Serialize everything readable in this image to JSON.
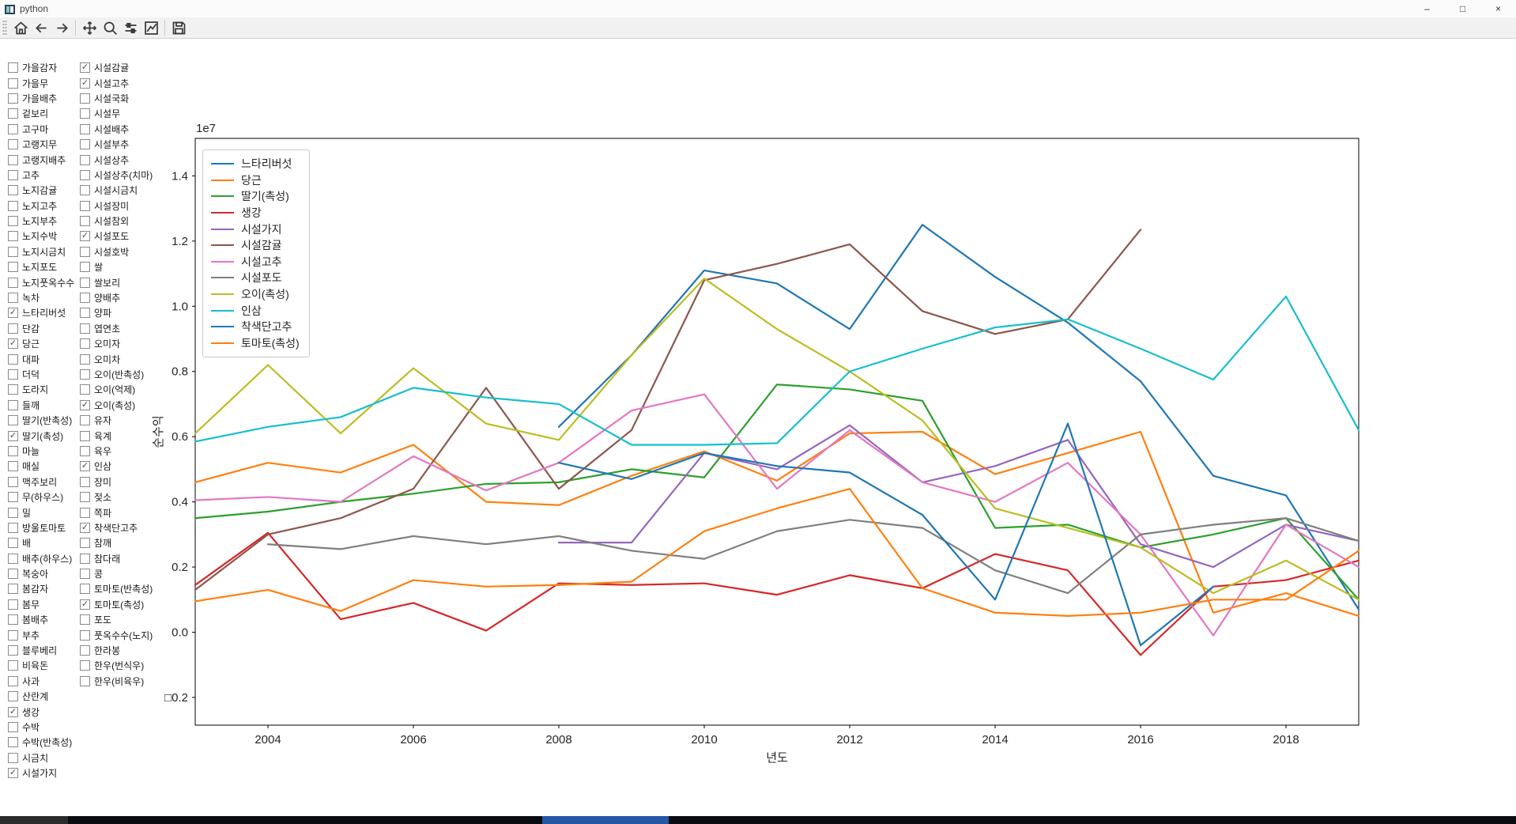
{
  "window": {
    "title": "python",
    "controls": {
      "minimize": "–",
      "maximize": "□",
      "close": "×"
    }
  },
  "toolbar": {
    "buttons": [
      "home",
      "back",
      "forward",
      "pan",
      "zoom",
      "subplots",
      "customize",
      "save"
    ]
  },
  "checkbox_panel": {
    "left": [
      {
        "label": "가을감자",
        "checked": false
      },
      {
        "label": "가을무",
        "checked": false
      },
      {
        "label": "가을배추",
        "checked": false
      },
      {
        "label": "겉보리",
        "checked": false
      },
      {
        "label": "고구마",
        "checked": false
      },
      {
        "label": "고랭지무",
        "checked": false
      },
      {
        "label": "고랭지배추",
        "checked": false
      },
      {
        "label": "고추",
        "checked": false
      },
      {
        "label": "노지감귤",
        "checked": false
      },
      {
        "label": "노지고추",
        "checked": false
      },
      {
        "label": "노지부추",
        "checked": false
      },
      {
        "label": "노지수박",
        "checked": false
      },
      {
        "label": "노지시금치",
        "checked": false
      },
      {
        "label": "노지포도",
        "checked": false
      },
      {
        "label": "노지풋옥수수",
        "checked": false
      },
      {
        "label": "녹차",
        "checked": false
      },
      {
        "label": "느타리버섯",
        "checked": true
      },
      {
        "label": "단감",
        "checked": false
      },
      {
        "label": "당근",
        "checked": true
      },
      {
        "label": "대파",
        "checked": false
      },
      {
        "label": "더덕",
        "checked": false
      },
      {
        "label": "도라지",
        "checked": false
      },
      {
        "label": "들깨",
        "checked": false
      },
      {
        "label": "딸기(반촉성)",
        "checked": false
      },
      {
        "label": "딸기(촉성)",
        "checked": true
      },
      {
        "label": "마늘",
        "checked": false
      },
      {
        "label": "매실",
        "checked": false
      },
      {
        "label": "맥주보리",
        "checked": false
      },
      {
        "label": "무(하우스)",
        "checked": false
      },
      {
        "label": "밀",
        "checked": false
      },
      {
        "label": "방울토마토",
        "checked": false
      },
      {
        "label": "배",
        "checked": false
      },
      {
        "label": "배추(하우스)",
        "checked": false
      },
      {
        "label": "복숭아",
        "checked": false
      },
      {
        "label": "봄감자",
        "checked": false
      },
      {
        "label": "봄무",
        "checked": false
      },
      {
        "label": "봄배추",
        "checked": false
      },
      {
        "label": "부추",
        "checked": false
      },
      {
        "label": "블루베리",
        "checked": false
      },
      {
        "label": "비육돈",
        "checked": false
      },
      {
        "label": "사과",
        "checked": false
      },
      {
        "label": "산란계",
        "checked": false
      },
      {
        "label": "생강",
        "checked": true
      },
      {
        "label": "수박",
        "checked": false
      },
      {
        "label": "수박(반촉성)",
        "checked": false
      },
      {
        "label": "시금치",
        "checked": false
      },
      {
        "label": "시설가지",
        "checked": true
      }
    ],
    "right": [
      {
        "label": "시설감귤",
        "checked": true
      },
      {
        "label": "시설고추",
        "checked": true
      },
      {
        "label": "시설국화",
        "checked": false
      },
      {
        "label": "시설무",
        "checked": false
      },
      {
        "label": "시설배추",
        "checked": false
      },
      {
        "label": "시설부추",
        "checked": false
      },
      {
        "label": "시설상추",
        "checked": false
      },
      {
        "label": "시설상추(치마)",
        "checked": false
      },
      {
        "label": "시설시금치",
        "checked": false
      },
      {
        "label": "시설장미",
        "checked": false
      },
      {
        "label": "시설참외",
        "checked": false
      },
      {
        "label": "시설포도",
        "checked": true
      },
      {
        "label": "시설호박",
        "checked": false
      },
      {
        "label": "쌀",
        "checked": false
      },
      {
        "label": "쌀보리",
        "checked": false
      },
      {
        "label": "양배추",
        "checked": false
      },
      {
        "label": "양파",
        "checked": false
      },
      {
        "label": "엽연초",
        "checked": false
      },
      {
        "label": "오미자",
        "checked": false
      },
      {
        "label": "오미차",
        "checked": false
      },
      {
        "label": "오이(반촉성)",
        "checked": false
      },
      {
        "label": "오이(억제)",
        "checked": false
      },
      {
        "label": "오이(촉성)",
        "checked": true
      },
      {
        "label": "유자",
        "checked": false
      },
      {
        "label": "육계",
        "checked": false
      },
      {
        "label": "육우",
        "checked": false
      },
      {
        "label": "인삼",
        "checked": true
      },
      {
        "label": "장미",
        "checked": false
      },
      {
        "label": "젖소",
        "checked": false
      },
      {
        "label": "쪽파",
        "checked": false
      },
      {
        "label": "착색단고추",
        "checked": true
      },
      {
        "label": "참깨",
        "checked": false
      },
      {
        "label": "참다래",
        "checked": false
      },
      {
        "label": "콩",
        "checked": false
      },
      {
        "label": "토마토(반촉성)",
        "checked": false
      },
      {
        "label": "토마토(촉성)",
        "checked": true
      },
      {
        "label": "포도",
        "checked": false
      },
      {
        "label": "풋옥수수(노지)",
        "checked": false
      },
      {
        "label": "한라봉",
        "checked": false
      },
      {
        "label": "한우(번식우)",
        "checked": false
      },
      {
        "label": "한우(비육우)",
        "checked": false
      }
    ]
  },
  "chart_data": {
    "type": "line",
    "title": "",
    "xlabel": "년도",
    "ylabel": "순수익",
    "offset_text": "1e7",
    "unit_scale": 10000000.0,
    "grid": false,
    "legend_position": "upper left",
    "xlim": [
      2003,
      2019
    ],
    "ylim": [
      -0.285,
      1.515
    ],
    "xticks": [
      2004,
      2006,
      2008,
      2010,
      2012,
      2014,
      2016,
      2018
    ],
    "yticks": [
      -0.2,
      0.0,
      0.2,
      0.4,
      0.6,
      0.8,
      1.0,
      1.2,
      1.4
    ],
    "ytick_labels": [
      "□0.2",
      "0.0",
      "0.2",
      "0.4",
      "0.6",
      "0.8",
      "1.0",
      "1.2",
      "1.4"
    ],
    "series": [
      {
        "name": "느타리버섯",
        "color": "#1f77b4",
        "x": [
          2008,
          2009,
          2010,
          2011,
          2012,
          2013,
          2014,
          2015,
          2016,
          2017,
          2018,
          2019
        ],
        "y": [
          0.63,
          0.85,
          1.11,
          1.07,
          0.93,
          1.25,
          1.09,
          0.95,
          0.77,
          0.48,
          0.42,
          0.07
        ]
      },
      {
        "name": "당근",
        "color": "#ff7f0e",
        "x": [
          2003,
          2004,
          2005,
          2006,
          2007,
          2008,
          2009,
          2010,
          2011,
          2012,
          2013,
          2014,
          2015,
          2016,
          2017,
          2018,
          2019
        ],
        "y": [
          0.46,
          0.52,
          0.49,
          0.575,
          0.4,
          0.39,
          0.48,
          0.555,
          0.465,
          0.61,
          0.615,
          0.485,
          0.55,
          0.615,
          0.06,
          0.12,
          0.05
        ]
      },
      {
        "name": "딸기(촉성)",
        "color": "#2ca02c",
        "x": [
          2003,
          2004,
          2005,
          2006,
          2007,
          2008,
          2009,
          2010,
          2011,
          2012,
          2013,
          2014,
          2015,
          2016,
          2017,
          2018,
          2019
        ],
        "y": [
          0.35,
          0.37,
          0.4,
          0.425,
          0.455,
          0.46,
          0.5,
          0.475,
          0.76,
          0.745,
          0.71,
          0.32,
          0.33,
          0.26,
          0.3,
          0.35,
          0.1
        ]
      },
      {
        "name": "생강",
        "color": "#d62728",
        "x": [
          2003,
          2004,
          2005,
          2006,
          2007,
          2008,
          2009,
          2010,
          2011,
          2012,
          2013,
          2014,
          2015,
          2016,
          2017,
          2018,
          2019
        ],
        "y": [
          0.145,
          0.305,
          0.04,
          0.09,
          0.005,
          0.15,
          0.145,
          0.15,
          0.115,
          0.175,
          0.135,
          0.24,
          0.19,
          -0.07,
          0.14,
          0.16,
          0.22
        ]
      },
      {
        "name": "시설가지",
        "color": "#9467bd",
        "x": [
          2008,
          2009,
          2010,
          2011,
          2012,
          2013,
          2014,
          2015,
          2016,
          2017,
          2018,
          2019
        ],
        "y": [
          0.275,
          0.275,
          0.55,
          0.5,
          0.635,
          0.46,
          0.51,
          0.59,
          0.27,
          0.2,
          0.33,
          0.28
        ]
      },
      {
        "name": "시설감귤",
        "color": "#8c564b",
        "x": [
          2003,
          2004,
          2005,
          2006,
          2007,
          2008,
          2009,
          2010,
          2011,
          2012,
          2013,
          2014,
          2015,
          2016
        ],
        "y": [
          0.13,
          0.3,
          0.35,
          0.44,
          0.75,
          0.44,
          0.62,
          1.08,
          1.13,
          1.19,
          0.985,
          0.915,
          0.96,
          1.235
        ]
      },
      {
        "name": "시설고추",
        "color": "#e377c2",
        "x": [
          2003,
          2004,
          2005,
          2006,
          2007,
          2008,
          2009,
          2010,
          2011,
          2012,
          2013,
          2014,
          2015,
          2016,
          2017,
          2018,
          2019
        ],
        "y": [
          0.405,
          0.415,
          0.4,
          0.54,
          0.435,
          0.52,
          0.68,
          0.73,
          0.44,
          0.62,
          0.46,
          0.4,
          0.52,
          0.3,
          -0.01,
          0.33,
          0.2
        ]
      },
      {
        "name": "시설포도",
        "color": "#7f7f7f",
        "x": [
          2004,
          2005,
          2006,
          2007,
          2008,
          2009,
          2010,
          2011,
          2012,
          2013,
          2014,
          2015,
          2016,
          2017,
          2018,
          2019
        ],
        "y": [
          0.27,
          0.255,
          0.295,
          0.27,
          0.295,
          0.25,
          0.225,
          0.31,
          0.345,
          0.32,
          0.19,
          0.12,
          0.3,
          0.33,
          0.35,
          0.28
        ]
      },
      {
        "name": "오이(촉성)",
        "color": "#bcbd22",
        "x": [
          2003,
          2004,
          2005,
          2006,
          2007,
          2008,
          2009,
          2010,
          2011,
          2012,
          2013,
          2014,
          2015,
          2016,
          2017,
          2018,
          2019
        ],
        "y": [
          0.61,
          0.82,
          0.61,
          0.81,
          0.64,
          0.59,
          0.85,
          1.085,
          0.93,
          0.8,
          0.65,
          0.38,
          0.32,
          0.26,
          0.12,
          0.22,
          0.1
        ]
      },
      {
        "name": "인삼",
        "color": "#17becf",
        "x": [
          2003,
          2004,
          2005,
          2006,
          2007,
          2008,
          2009,
          2010,
          2011,
          2012,
          2013,
          2014,
          2015,
          2016,
          2017,
          2018,
          2019
        ],
        "y": [
          0.585,
          0.63,
          0.66,
          0.75,
          0.72,
          0.7,
          0.575,
          0.575,
          0.58,
          0.8,
          0.87,
          0.935,
          0.96,
          0.87,
          0.775,
          1.03,
          0.62
        ]
      },
      {
        "name": "착색단고추",
        "color": "#1f77b4",
        "x": [
          2008,
          2009,
          2010,
          2011,
          2012,
          2013,
          2014,
          2015,
          2016,
          2017
        ],
        "y": [
          0.52,
          0.47,
          0.55,
          0.51,
          0.49,
          0.36,
          0.1,
          0.64,
          -0.04,
          0.14
        ]
      },
      {
        "name": "토마토(촉성)",
        "color": "#ff7f0e",
        "x": [
          2003,
          2004,
          2005,
          2006,
          2007,
          2008,
          2009,
          2010,
          2011,
          2012,
          2013,
          2014,
          2015,
          2016,
          2017,
          2018,
          2019
        ],
        "y": [
          0.095,
          0.13,
          0.065,
          0.16,
          0.14,
          0.145,
          0.155,
          0.31,
          0.38,
          0.44,
          0.135,
          0.06,
          0.05,
          0.06,
          0.1,
          0.1,
          0.25
        ]
      }
    ]
  }
}
